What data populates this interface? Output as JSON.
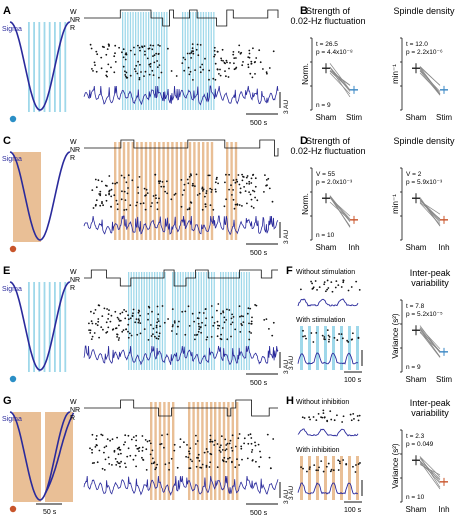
{
  "colors": {
    "stim": "#9fd8ea",
    "inh": "#e9bf96",
    "sigma": "#2a2a9c",
    "sham": "#222222",
    "stim_mean": "#3a87c4",
    "inh_mean": "#c8542a",
    "lines": "#888888"
  },
  "rows": [
    {
      "id": "A",
      "mode": "stim",
      "sigma_label": "Sigma",
      "hyp_labels": [
        "W",
        "NR",
        "R"
      ],
      "scale_label": "3 AU",
      "time_label": "500 s",
      "stim_panel": {
        "letter": "B",
        "left_title": "Strength of\n0.02-Hz fluctuation",
        "right_title": "Spindle density",
        "left_ylabel": "Norm.",
        "right_ylabel": "min⁻¹",
        "left_stats": [
          "t = 26.5",
          "p = 4.4x10⁻⁸"
        ],
        "right_stats": [
          "t = 12.0",
          "p = 2.2x10⁻⁶"
        ],
        "n_label": "n = 9",
        "x_labels": [
          "Sham",
          "Stim"
        ]
      }
    },
    {
      "id": "C",
      "mode": "inh",
      "sigma_label": "Sigma",
      "hyp_labels": [
        "W",
        "NR",
        "R"
      ],
      "scale_label": "3 AU",
      "time_label": "500 s",
      "stim_panel": {
        "letter": "D",
        "left_title": "Strength of\n0.02-Hz fluctuation",
        "right_title": "Spindle density",
        "left_ylabel": "Norm.",
        "right_ylabel": "min⁻¹",
        "left_stats": [
          "V = 55",
          "p = 2.0x10⁻³"
        ],
        "right_stats": [
          "V = 2",
          "p = 5.9x10⁻³"
        ],
        "n_label": "n = 10",
        "x_labels": [
          "Sham",
          "Inh"
        ]
      }
    },
    {
      "id": "E",
      "mode": "stim",
      "sigma_label": "Sigma",
      "hyp_labels": [
        "W",
        "NR",
        "R"
      ],
      "scale_label": "3 AU",
      "time_label": "500 s",
      "var_panel": {
        "letter": "F",
        "top_label": "Without stimulation",
        "bottom_label": "With stimulation",
        "scale_label": "3 AU",
        "time_label": "100 s",
        "title": "Inter-peak\nvariability",
        "ylabel": "Variance (s²)",
        "stats": [
          "t = 7.8",
          "p = 5.2x10⁻⁵"
        ],
        "n_label": "n = 9",
        "x_labels": [
          "Sham",
          "Stim"
        ]
      }
    },
    {
      "id": "G",
      "mode": "inh",
      "sigma_label": "Sigma",
      "hyp_labels": [
        "W",
        "NR",
        "R"
      ],
      "scale_label": "3 AU",
      "time_label": "500 s",
      "cycle_time_label": "50 s",
      "var_panel": {
        "letter": "H",
        "top_label": "Without inhibition",
        "bottom_label": "With inhibition",
        "scale_label": "3 AU",
        "time_label": "100 s",
        "title": "Inter-peak\nvariability",
        "ylabel": "Variance (s²)",
        "stats": [
          "t = 2.3",
          "p = 0.049"
        ],
        "n_label": "n = 10",
        "x_labels": [
          "Sham",
          "Inh"
        ]
      }
    }
  ]
}
